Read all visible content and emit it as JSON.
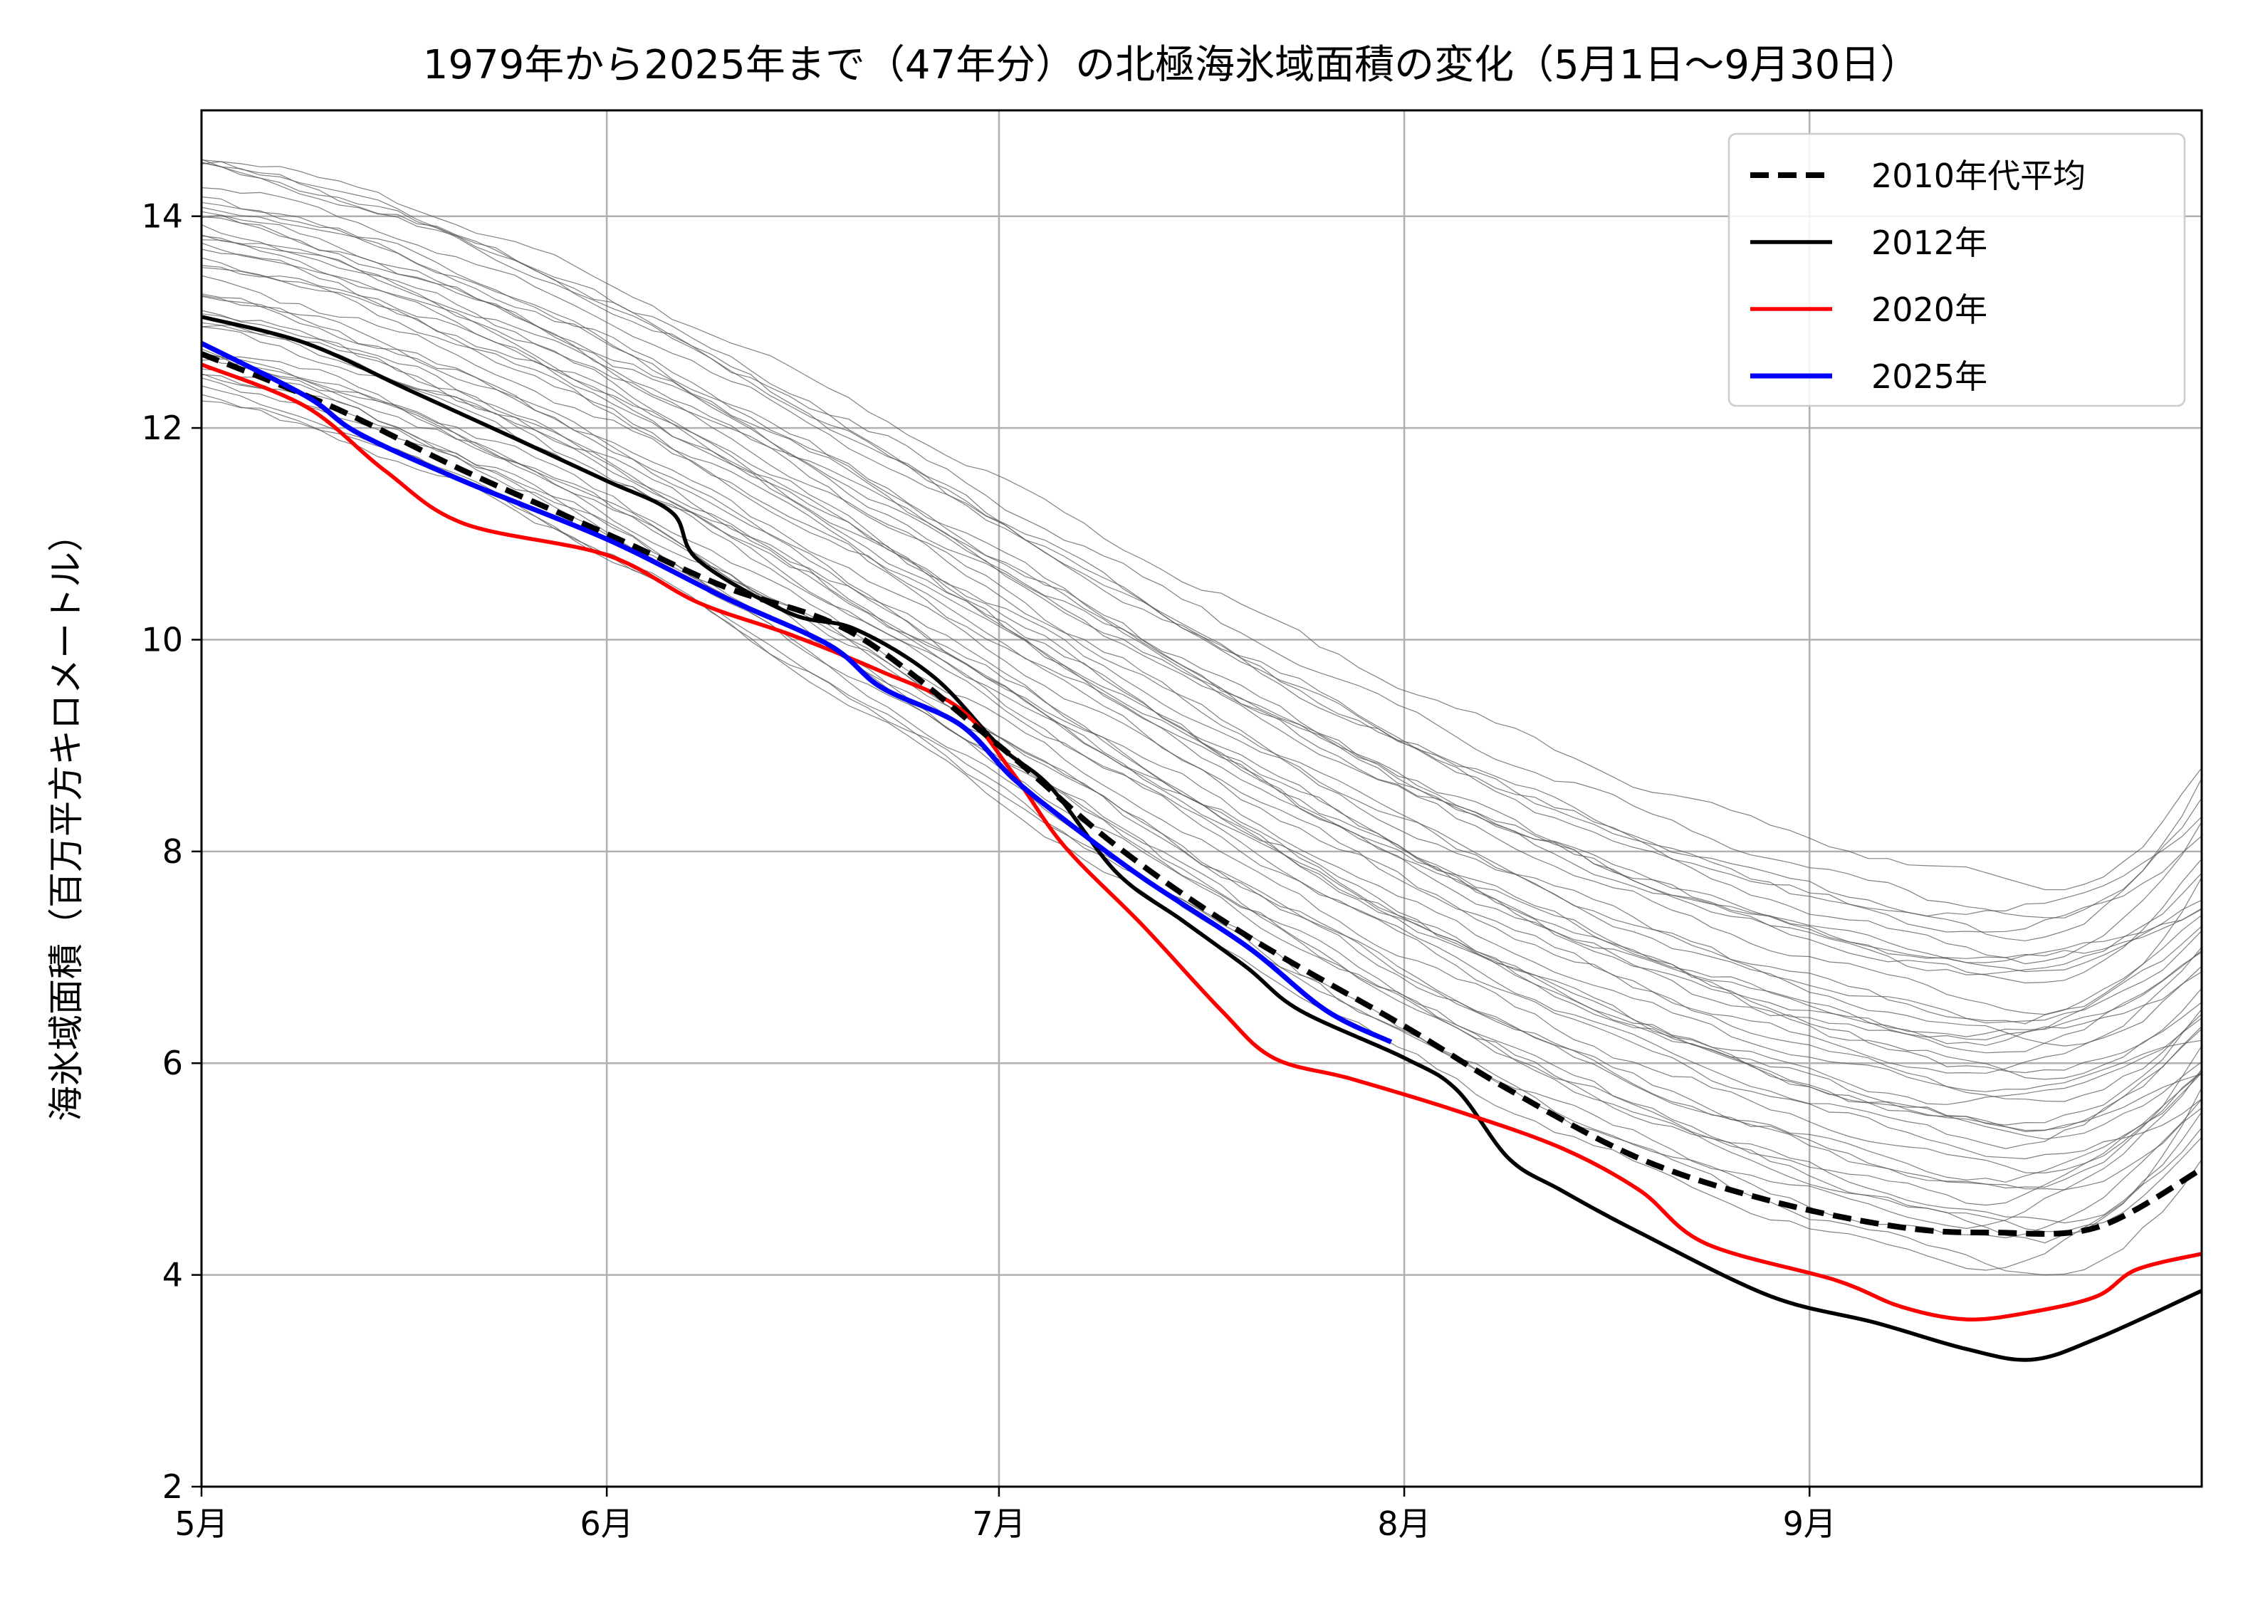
{
  "chart_data": {
    "type": "line",
    "title": "1979年から2025年まで（47年分）の北極海氷域面積の変化（5月1日〜9月30日）",
    "xlabel": "",
    "ylabel": "海氷域面積（百万平方キロメートル）",
    "xlim": [
      "5月1日",
      "9月30日"
    ],
    "ylim": [
      2,
      15
    ],
    "yticks": [
      2,
      4,
      6,
      8,
      10,
      12,
      14
    ],
    "xticks": [
      {
        "label": "5月",
        "day": 0
      },
      {
        "label": "6月",
        "day": 31
      },
      {
        "label": "7月",
        "day": 61
      },
      {
        "label": "8月",
        "day": 92
      },
      {
        "label": "9月",
        "day": 123
      }
    ],
    "grid": true,
    "legend": {
      "position": "top-right"
    },
    "series": [
      {
        "name": "2010年代平均",
        "color": "#000000",
        "style": "dashed",
        "points": [
          [
            0,
            12.7
          ],
          [
            10,
            12.2
          ],
          [
            20,
            11.6
          ],
          [
            31,
            11.0
          ],
          [
            40,
            10.5
          ],
          [
            50,
            10.05
          ],
          [
            61,
            9.0
          ],
          [
            70,
            8.05
          ],
          [
            80,
            7.2
          ],
          [
            92,
            6.35
          ],
          [
            100,
            5.75
          ],
          [
            110,
            5.1
          ],
          [
            120,
            4.7
          ],
          [
            130,
            4.45
          ],
          [
            137,
            4.4
          ],
          [
            145,
            4.45
          ],
          [
            153,
            5.0
          ]
        ]
      },
      {
        "name": "2012年",
        "color": "#000000",
        "style": "solid",
        "points": [
          [
            0,
            13.05
          ],
          [
            8,
            12.8
          ],
          [
            16,
            12.35
          ],
          [
            24,
            11.9
          ],
          [
            31,
            11.5
          ],
          [
            36,
            11.2
          ],
          [
            38,
            10.75
          ],
          [
            45,
            10.25
          ],
          [
            50,
            10.1
          ],
          [
            56,
            9.65
          ],
          [
            61,
            9.0
          ],
          [
            65,
            8.6
          ],
          [
            70,
            7.8
          ],
          [
            75,
            7.35
          ],
          [
            80,
            6.9
          ],
          [
            84,
            6.5
          ],
          [
            92,
            6.05
          ],
          [
            96,
            5.75
          ],
          [
            100,
            5.1
          ],
          [
            104,
            4.8
          ],
          [
            110,
            4.4
          ],
          [
            120,
            3.8
          ],
          [
            128,
            3.55
          ],
          [
            135,
            3.3
          ],
          [
            140,
            3.2
          ],
          [
            145,
            3.4
          ],
          [
            153,
            3.85
          ]
        ]
      },
      {
        "name": "2020年",
        "color": "#ff0000",
        "style": "solid",
        "points": [
          [
            0,
            12.6
          ],
          [
            8,
            12.2
          ],
          [
            14,
            11.6
          ],
          [
            20,
            11.1
          ],
          [
            31,
            10.8
          ],
          [
            38,
            10.35
          ],
          [
            45,
            10.05
          ],
          [
            52,
            9.7
          ],
          [
            58,
            9.35
          ],
          [
            62,
            8.75
          ],
          [
            66,
            8.05
          ],
          [
            72,
            7.3
          ],
          [
            78,
            6.5
          ],
          [
            82,
            6.05
          ],
          [
            88,
            5.85
          ],
          [
            96,
            5.55
          ],
          [
            104,
            5.2
          ],
          [
            110,
            4.8
          ],
          [
            115,
            4.3
          ],
          [
            125,
            3.95
          ],
          [
            130,
            3.7
          ],
          [
            135,
            3.58
          ],
          [
            140,
            3.65
          ],
          [
            145,
            3.8
          ],
          [
            148,
            4.05
          ],
          [
            153,
            4.2
          ]
        ]
      },
      {
        "name": "2025年",
        "color": "#0000ff",
        "style": "solid",
        "points": [
          [
            0,
            12.8
          ],
          [
            8,
            12.3
          ],
          [
            12,
            11.95
          ],
          [
            20,
            11.5
          ],
          [
            31,
            10.95
          ],
          [
            40,
            10.4
          ],
          [
            48,
            9.95
          ],
          [
            52,
            9.55
          ],
          [
            58,
            9.2
          ],
          [
            62,
            8.7
          ],
          [
            66,
            8.3
          ],
          [
            72,
            7.75
          ],
          [
            80,
            7.1
          ],
          [
            86,
            6.5
          ],
          [
            91,
            6.2
          ]
        ]
      }
    ]
  }
}
